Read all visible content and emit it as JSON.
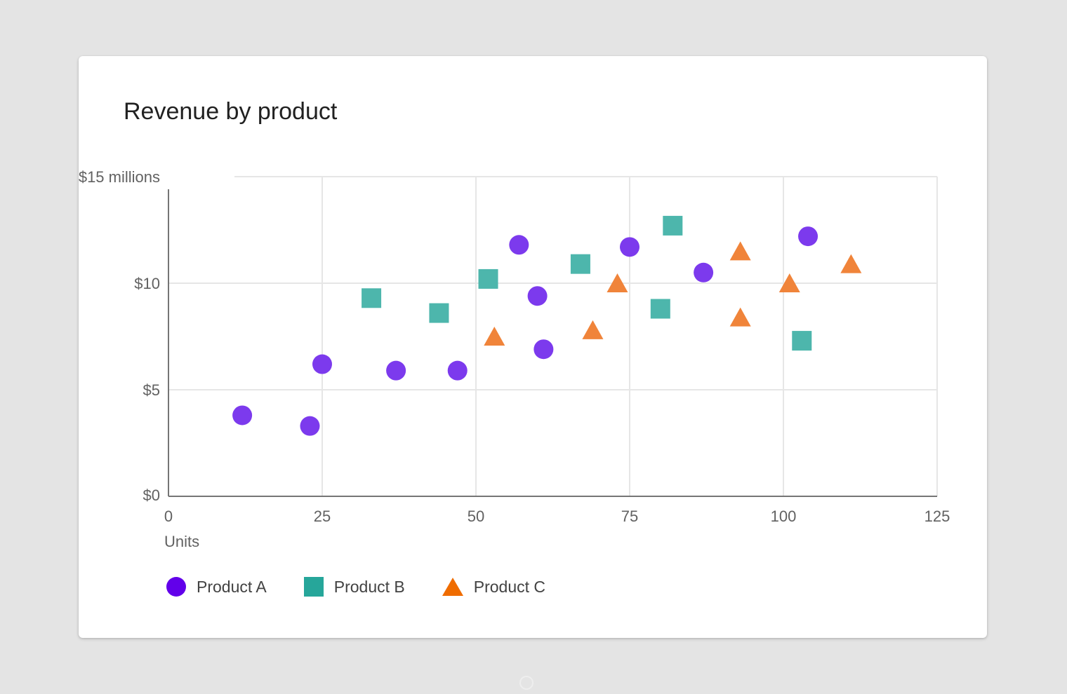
{
  "chart_data": {
    "type": "scatter",
    "title": "Revenue by product",
    "xlabel": "Units",
    "ylabel": "",
    "xlim": [
      0,
      125
    ],
    "ylim": [
      0,
      15
    ],
    "x_ticks": [
      "0",
      "25",
      "50",
      "75",
      "100",
      "125"
    ],
    "y_ticks": [
      "$0",
      "$5",
      "$10",
      "$15 millions"
    ],
    "grid": true,
    "legend_position": "bottom-left",
    "series": [
      {
        "name": "Product A",
        "marker": "circle",
        "color": "#6200ea",
        "points": [
          {
            "x": 12,
            "y": 3.8
          },
          {
            "x": 23,
            "y": 3.3
          },
          {
            "x": 25,
            "y": 6.2
          },
          {
            "x": 37,
            "y": 5.9
          },
          {
            "x": 47,
            "y": 5.9
          },
          {
            "x": 57,
            "y": 11.8
          },
          {
            "x": 60,
            "y": 9.4
          },
          {
            "x": 61,
            "y": 6.9
          },
          {
            "x": 75,
            "y": 11.7
          },
          {
            "x": 87,
            "y": 10.5
          },
          {
            "x": 104,
            "y": 12.2
          }
        ]
      },
      {
        "name": "Product B",
        "marker": "square",
        "color": "#26a69a",
        "points": [
          {
            "x": 33,
            "y": 9.3
          },
          {
            "x": 44,
            "y": 8.6
          },
          {
            "x": 52,
            "y": 10.2
          },
          {
            "x": 67,
            "y": 10.9
          },
          {
            "x": 80,
            "y": 8.8
          },
          {
            "x": 82,
            "y": 12.7
          },
          {
            "x": 103,
            "y": 7.3
          }
        ]
      },
      {
        "name": "Product C",
        "marker": "triangle",
        "color": "#ef6c00",
        "points": [
          {
            "x": 53,
            "y": 7.5
          },
          {
            "x": 69,
            "y": 7.8
          },
          {
            "x": 73,
            "y": 10.0
          },
          {
            "x": 93,
            "y": 11.5
          },
          {
            "x": 93,
            "y": 8.4
          },
          {
            "x": 101,
            "y": 10.0
          },
          {
            "x": 111,
            "y": 10.9
          }
        ]
      }
    ]
  }
}
